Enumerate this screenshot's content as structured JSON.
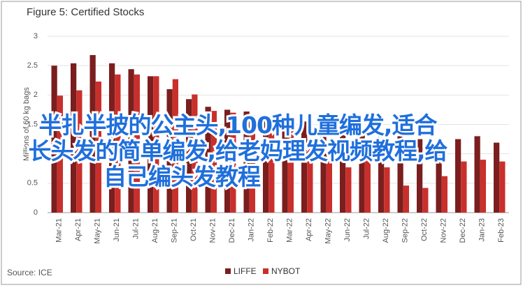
{
  "chart_data": {
    "type": "bar",
    "title": "Figure 5: Certified Stocks",
    "y_label": "Millions of 60 kg bags",
    "source": "Source: ICE",
    "categories": [
      "Mar-21",
      "Apr-21",
      "May-21",
      "Jun-21",
      "Jul-21",
      "Aug-21",
      "Sep-21",
      "Oct-21",
      "Nov-21",
      "Dec-21",
      "Jan-22",
      "Feb-22",
      "Mar-22",
      "Apr-22",
      "May-22",
      "Jun-22",
      "Jul-22",
      "Aug-22",
      "Sep-22",
      "Oct-22",
      "Nov-22",
      "Dec-22",
      "Jan-23",
      "Feb-23"
    ],
    "series": [
      {
        "name": "LIFFE",
        "color": "#7b1e1e",
        "values": [
          2.5,
          2.54,
          2.68,
          2.54,
          2.44,
          2.32,
          2.1,
          1.93,
          1.8,
          1.75,
          1.72,
          1.65,
          1.6,
          1.55,
          1.5,
          1.45,
          1.4,
          1.35,
          1.3,
          1.25,
          1.2,
          1.25,
          1.3,
          1.19
        ]
      },
      {
        "name": "NYBOT",
        "color": "#c9302c",
        "values": [
          1.99,
          2.08,
          2.23,
          2.35,
          2.35,
          2.32,
          2.27,
          2.01,
          1.73,
          1.7,
          1.65,
          1.55,
          1.4,
          1.25,
          1.05,
          0.77,
          0.89,
          0.77,
          0.46,
          0.42,
          0.62,
          0.87,
          0.9,
          0.87
        ]
      }
    ],
    "ylim": [
      0,
      3
    ],
    "yticks": [
      0,
      0.5,
      1,
      1.5,
      2,
      2.5,
      3
    ],
    "grid": true,
    "legend": "bottom"
  },
  "overlay": [
    "半扎半披的公主头,100种儿童编发,适合",
    "长头发的简单编发,给老妈理发视频教程,给",
    "自己编头发教程"
  ]
}
